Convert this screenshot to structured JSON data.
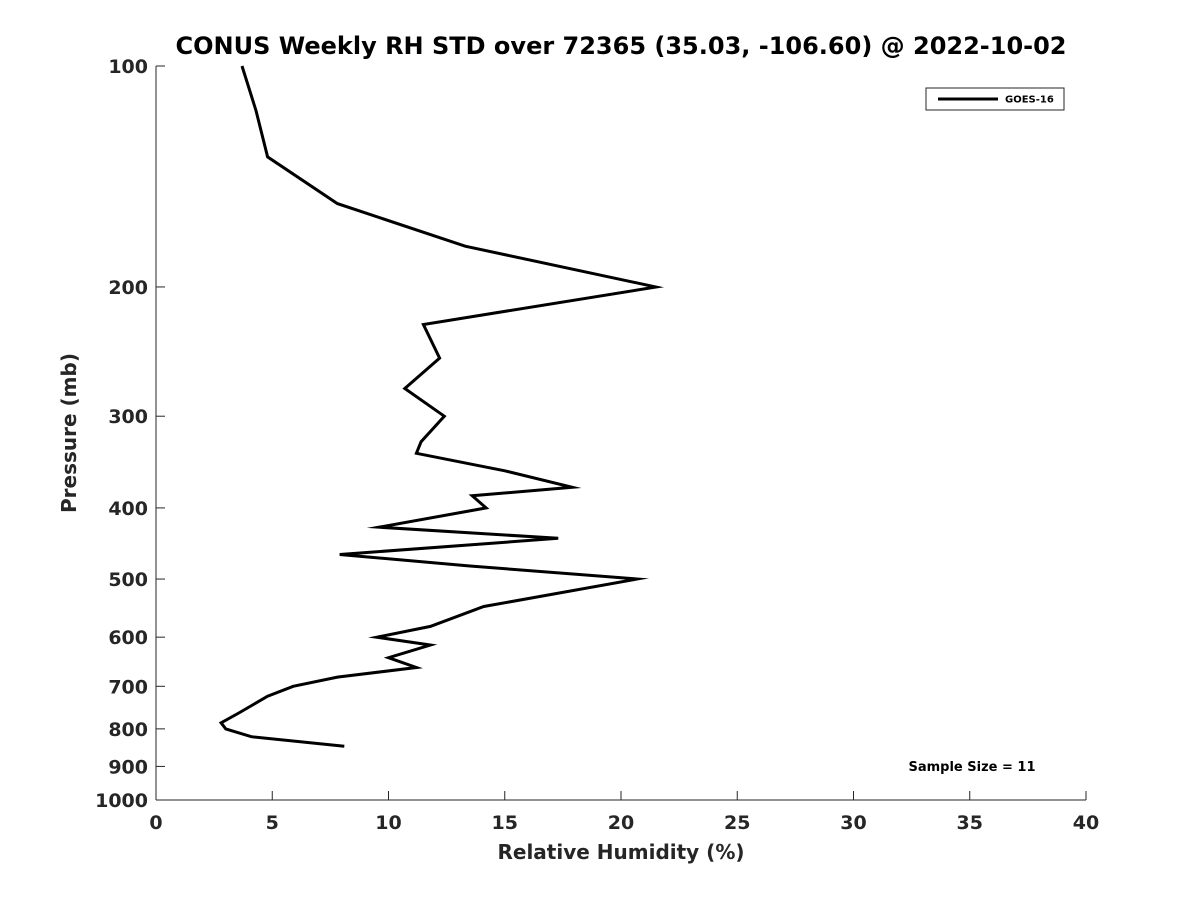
{
  "chart_data": {
    "type": "line",
    "title": "CONUS Weekly RH STD over 72365 (35.03, -106.60) @ 2022-10-02",
    "xlabel": "Relative Humidity (%)",
    "ylabel": "Pressure (mb)",
    "xlim": [
      0,
      40
    ],
    "ylim": [
      1000,
      100
    ],
    "y_scale": "log",
    "y_reversed": true,
    "x_ticks": [
      "0",
      "5",
      "10",
      "15",
      "20",
      "25",
      "30",
      "35",
      "40"
    ],
    "y_ticks": [
      "100",
      "200",
      "300",
      "400",
      "500",
      "600",
      "700",
      "800",
      "900",
      "1000"
    ],
    "legend": {
      "position": "top-right"
    },
    "annotation": "Sample Size = 11",
    "grid": false,
    "series": [
      {
        "name": "GOES-16",
        "color": "#000000",
        "points": [
          {
            "x": 3.7,
            "y": 100
          },
          {
            "x": 4.3,
            "y": 115
          },
          {
            "x": 4.8,
            "y": 133
          },
          {
            "x": 7.8,
            "y": 154
          },
          {
            "x": 13.3,
            "y": 176
          },
          {
            "x": 21.5,
            "y": 200
          },
          {
            "x": 11.5,
            "y": 225
          },
          {
            "x": 12.2,
            "y": 250
          },
          {
            "x": 10.7,
            "y": 275
          },
          {
            "x": 12.4,
            "y": 300
          },
          {
            "x": 11.4,
            "y": 325
          },
          {
            "x": 11.2,
            "y": 337
          },
          {
            "x": 15.0,
            "y": 356
          },
          {
            "x": 17.9,
            "y": 375
          },
          {
            "x": 13.6,
            "y": 385
          },
          {
            "x": 14.2,
            "y": 400
          },
          {
            "x": 9.6,
            "y": 425
          },
          {
            "x": 17.3,
            "y": 440
          },
          {
            "x": 7.9,
            "y": 463
          },
          {
            "x": 13.5,
            "y": 480
          },
          {
            "x": 20.7,
            "y": 500
          },
          {
            "x": 14.1,
            "y": 545
          },
          {
            "x": 11.8,
            "y": 580
          },
          {
            "x": 9.5,
            "y": 600
          },
          {
            "x": 11.8,
            "y": 615
          },
          {
            "x": 10.0,
            "y": 640
          },
          {
            "x": 11.2,
            "y": 660
          },
          {
            "x": 7.8,
            "y": 680
          },
          {
            "x": 5.9,
            "y": 700
          },
          {
            "x": 4.8,
            "y": 722
          },
          {
            "x": 3.6,
            "y": 760
          },
          {
            "x": 2.8,
            "y": 785
          },
          {
            "x": 3.0,
            "y": 800
          },
          {
            "x": 4.1,
            "y": 820
          },
          {
            "x": 8.1,
            "y": 845
          }
        ]
      }
    ]
  }
}
